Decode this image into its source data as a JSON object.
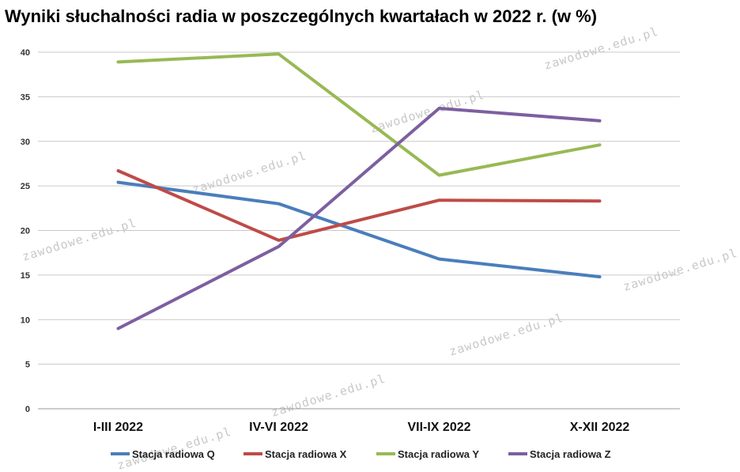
{
  "chart_data": {
    "type": "line",
    "title": "Wyniki słuchalności radia w poszczególnych kwartałach w 2022 r. (w %)",
    "categories": [
      "I-III 2022",
      "IV-VI 2022",
      "VII-IX 2022",
      "X-XII 2022"
    ],
    "ylim": [
      0,
      40
    ],
    "yticks": [
      0,
      5,
      10,
      15,
      20,
      25,
      30,
      35,
      40
    ],
    "grid": true,
    "legend_position": "bottom",
    "series": [
      {
        "name": "Stacja radiowa Q",
        "color": "#4a7ebb",
        "values": [
          25.4,
          23.0,
          16.8,
          14.8
        ]
      },
      {
        "name": "Stacja radiowa X",
        "color": "#be4b48",
        "values": [
          26.7,
          18.9,
          23.4,
          23.3
        ]
      },
      {
        "name": "Stacja radiowa Y",
        "color": "#98b954",
        "values": [
          38.9,
          39.8,
          26.2,
          29.6
        ]
      },
      {
        "name": "Stacja radiowa Z",
        "color": "#7d5fa0",
        "values": [
          9.0,
          18.2,
          33.7,
          32.3
        ]
      }
    ]
  },
  "watermark": "zawodowe.edu.pl"
}
